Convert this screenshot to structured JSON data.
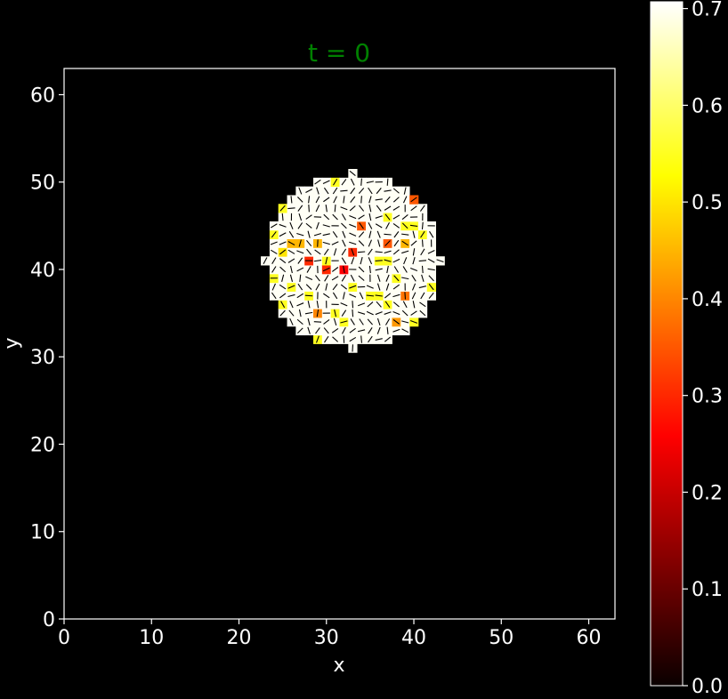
{
  "chart_data": {
    "type": "heatmap",
    "title": "t = 0",
    "xlabel": "x",
    "ylabel": "y",
    "xlim": [
      0,
      63
    ],
    "ylim": [
      0,
      63
    ],
    "x_ticks": [
      0,
      10,
      20,
      30,
      40,
      50,
      60
    ],
    "y_ticks": [
      0,
      10,
      20,
      30,
      40,
      50,
      60
    ],
    "grid": false,
    "background": "#000000",
    "colormap": "hot",
    "colorbar": {
      "min": 0.0,
      "max": 0.707,
      "ticks": [
        0.0,
        0.1,
        0.2,
        0.3,
        0.4,
        0.5,
        0.6,
        0.7
      ],
      "tick_labels": [
        "0.0",
        "0.1",
        "0.2",
        "0.3",
        "0.4",
        "0.5",
        "0.6",
        "0.7"
      ]
    },
    "disc": {
      "center": [
        33,
        41
      ],
      "radius": 10
    },
    "field_value_typical": 0.7,
    "field_value_low_cells": [
      {
        "x": 28,
        "y": 41,
        "value": 0.3
      },
      {
        "x": 30,
        "y": 40,
        "value": 0.3
      },
      {
        "x": 32,
        "y": 40,
        "value": 0.25
      },
      {
        "x": 33,
        "y": 42,
        "value": 0.3
      },
      {
        "x": 34,
        "y": 45,
        "value": 0.35
      },
      {
        "x": 40,
        "y": 48,
        "value": 0.35
      },
      {
        "x": 37,
        "y": 43,
        "value": 0.35
      },
      {
        "x": 39,
        "y": 37,
        "value": 0.38
      },
      {
        "x": 29,
        "y": 35,
        "value": 0.4
      },
      {
        "x": 38,
        "y": 34,
        "value": 0.42
      },
      {
        "x": 26,
        "y": 43,
        "value": 0.45
      },
      {
        "x": 27,
        "y": 43,
        "value": 0.45
      },
      {
        "x": 29,
        "y": 43,
        "value": 0.45
      },
      {
        "x": 39,
        "y": 43,
        "value": 0.45
      },
      {
        "x": 25,
        "y": 42,
        "value": 0.5
      }
    ],
    "field_value_mid_cells": [
      {
        "x": 25,
        "y": 47,
        "value": 0.55
      },
      {
        "x": 24,
        "y": 44,
        "value": 0.55
      },
      {
        "x": 26,
        "y": 38,
        "value": 0.55
      },
      {
        "x": 25,
        "y": 36,
        "value": 0.55
      },
      {
        "x": 28,
        "y": 37,
        "value": 0.55
      },
      {
        "x": 31,
        "y": 35,
        "value": 0.55
      },
      {
        "x": 32,
        "y": 34,
        "value": 0.55
      },
      {
        "x": 29,
        "y": 32,
        "value": 0.55
      },
      {
        "x": 35,
        "y": 37,
        "value": 0.55
      },
      {
        "x": 36,
        "y": 37,
        "value": 0.55
      },
      {
        "x": 37,
        "y": 36,
        "value": 0.55
      },
      {
        "x": 38,
        "y": 39,
        "value": 0.55
      },
      {
        "x": 36,
        "y": 41,
        "value": 0.55
      },
      {
        "x": 37,
        "y": 41,
        "value": 0.55
      },
      {
        "x": 40,
        "y": 45,
        "value": 0.55
      },
      {
        "x": 39,
        "y": 45,
        "value": 0.55
      },
      {
        "x": 41,
        "y": 44,
        "value": 0.55
      },
      {
        "x": 42,
        "y": 38,
        "value": 0.55
      },
      {
        "x": 40,
        "y": 34,
        "value": 0.55
      },
      {
        "x": 37,
        "y": 46,
        "value": 0.55
      },
      {
        "x": 31,
        "y": 50,
        "value": 0.55
      },
      {
        "x": 33,
        "y": 38,
        "value": 0.55
      },
      {
        "x": 24,
        "y": 39,
        "value": 0.55
      },
      {
        "x": 30,
        "y": 41,
        "value": 0.55
      }
    ]
  }
}
